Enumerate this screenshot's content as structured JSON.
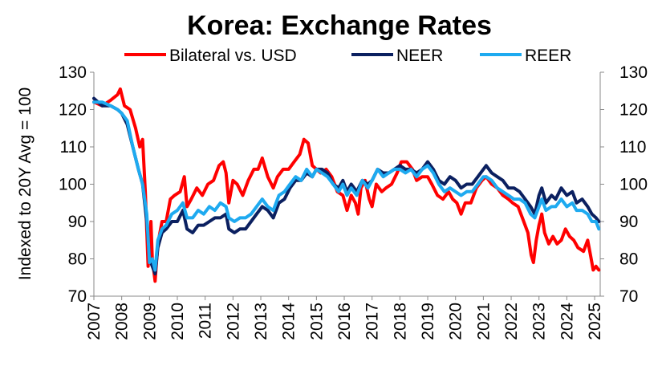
{
  "chart_data": {
    "type": "line",
    "title": "Korea: Exchange Rates",
    "ylabel": "Indexed to 20Y Avg = 100",
    "xlabel": "",
    "ylim": [
      70,
      130
    ],
    "y_ticks": [
      70,
      80,
      90,
      100,
      110,
      120,
      130
    ],
    "xlim": [
      2007,
      2025.2
    ],
    "x_ticks": [
      2007,
      2008,
      2009,
      2010,
      2011,
      2012,
      2013,
      2014,
      2015,
      2016,
      2017,
      2018,
      2019,
      2020,
      2021,
      2022,
      2023,
      2024,
      2025
    ],
    "grid": false,
    "secondary_y_axis": true,
    "legend_position": "top",
    "series": [
      {
        "name": "Bilateral vs. USD",
        "color": "#ff0000",
        "points": [
          [
            2007.0,
            122
          ],
          [
            2007.3,
            121
          ],
          [
            2007.6,
            122.5
          ],
          [
            2007.85,
            124
          ],
          [
            2007.95,
            125.5
          ],
          [
            2008.1,
            121
          ],
          [
            2008.3,
            120
          ],
          [
            2008.5,
            115
          ],
          [
            2008.65,
            110
          ],
          [
            2008.75,
            112
          ],
          [
            2008.85,
            98
          ],
          [
            2008.95,
            78
          ],
          [
            2009.05,
            90
          ],
          [
            2009.1,
            80
          ],
          [
            2009.2,
            74
          ],
          [
            2009.3,
            84
          ],
          [
            2009.45,
            90
          ],
          [
            2009.6,
            90
          ],
          [
            2009.75,
            96
          ],
          [
            2009.9,
            97
          ],
          [
            2010.1,
            98
          ],
          [
            2010.25,
            102
          ],
          [
            2010.35,
            94
          ],
          [
            2010.5,
            96
          ],
          [
            2010.7,
            99
          ],
          [
            2010.9,
            97
          ],
          [
            2011.1,
            100
          ],
          [
            2011.3,
            101
          ],
          [
            2011.5,
            105
          ],
          [
            2011.65,
            106
          ],
          [
            2011.75,
            103
          ],
          [
            2011.85,
            95
          ],
          [
            2012.0,
            101
          ],
          [
            2012.15,
            100
          ],
          [
            2012.35,
            97
          ],
          [
            2012.55,
            101
          ],
          [
            2012.75,
            104
          ],
          [
            2012.9,
            104
          ],
          [
            2013.05,
            107
          ],
          [
            2013.25,
            102
          ],
          [
            2013.45,
            99
          ],
          [
            2013.6,
            102
          ],
          [
            2013.8,
            104
          ],
          [
            2014.0,
            104
          ],
          [
            2014.2,
            106
          ],
          [
            2014.4,
            108
          ],
          [
            2014.55,
            112
          ],
          [
            2014.7,
            111
          ],
          [
            2014.85,
            105
          ],
          [
            2015.0,
            104
          ],
          [
            2015.15,
            103
          ],
          [
            2015.35,
            104
          ],
          [
            2015.55,
            102
          ],
          [
            2015.75,
            98
          ],
          [
            2015.95,
            97
          ],
          [
            2016.1,
            93
          ],
          [
            2016.25,
            97
          ],
          [
            2016.4,
            95
          ],
          [
            2016.5,
            92
          ],
          [
            2016.6,
            99
          ],
          [
            2016.75,
            101
          ],
          [
            2016.9,
            96
          ],
          [
            2017.0,
            94
          ],
          [
            2017.15,
            100
          ],
          [
            2017.35,
            98
          ],
          [
            2017.5,
            99
          ],
          [
            2017.7,
            100
          ],
          [
            2017.9,
            103
          ],
          [
            2018.05,
            106
          ],
          [
            2018.25,
            106
          ],
          [
            2018.45,
            104
          ],
          [
            2018.6,
            101
          ],
          [
            2018.8,
            102
          ],
          [
            2019.0,
            102
          ],
          [
            2019.15,
            100
          ],
          [
            2019.35,
            97
          ],
          [
            2019.55,
            96
          ],
          [
            2019.75,
            98
          ],
          [
            2019.9,
            96
          ],
          [
            2020.05,
            95
          ],
          [
            2020.2,
            92
          ],
          [
            2020.35,
            95
          ],
          [
            2020.55,
            95
          ],
          [
            2020.75,
            99
          ],
          [
            2020.95,
            101
          ],
          [
            2021.1,
            102
          ],
          [
            2021.3,
            100
          ],
          [
            2021.5,
            99
          ],
          [
            2021.7,
            97
          ],
          [
            2021.9,
            96
          ],
          [
            2022.05,
            95
          ],
          [
            2022.25,
            94
          ],
          [
            2022.45,
            90
          ],
          [
            2022.6,
            87
          ],
          [
            2022.72,
            81
          ],
          [
            2022.8,
            79
          ],
          [
            2022.9,
            85
          ],
          [
            2023.0,
            89
          ],
          [
            2023.1,
            92
          ],
          [
            2023.2,
            87
          ],
          [
            2023.35,
            84
          ],
          [
            2023.5,
            86
          ],
          [
            2023.65,
            84
          ],
          [
            2023.8,
            85
          ],
          [
            2023.95,
            88
          ],
          [
            2024.1,
            86
          ],
          [
            2024.25,
            85
          ],
          [
            2024.4,
            83
          ],
          [
            2024.6,
            82
          ],
          [
            2024.75,
            85
          ],
          [
            2024.85,
            81
          ],
          [
            2024.95,
            77
          ],
          [
            2025.05,
            78
          ],
          [
            2025.15,
            77
          ]
        ]
      },
      {
        "name": "NEER",
        "color": "#0b2060",
        "points": [
          [
            2007.0,
            123
          ],
          [
            2007.3,
            121
          ],
          [
            2007.6,
            121
          ],
          [
            2007.85,
            120
          ],
          [
            2008.0,
            119
          ],
          [
            2008.2,
            116
          ],
          [
            2008.4,
            110
          ],
          [
            2008.6,
            104
          ],
          [
            2008.75,
            100
          ],
          [
            2008.9,
            90
          ],
          [
            2009.0,
            80
          ],
          [
            2009.1,
            78
          ],
          [
            2009.2,
            76
          ],
          [
            2009.3,
            83
          ],
          [
            2009.45,
            87
          ],
          [
            2009.6,
            88
          ],
          [
            2009.8,
            90
          ],
          [
            2010.0,
            90
          ],
          [
            2010.2,
            93
          ],
          [
            2010.35,
            88
          ],
          [
            2010.55,
            87
          ],
          [
            2010.75,
            89
          ],
          [
            2010.95,
            89
          ],
          [
            2011.15,
            90
          ],
          [
            2011.35,
            91
          ],
          [
            2011.55,
            91
          ],
          [
            2011.75,
            92
          ],
          [
            2011.85,
            88
          ],
          [
            2012.05,
            87
          ],
          [
            2012.25,
            88
          ],
          [
            2012.45,
            88
          ],
          [
            2012.65,
            90
          ],
          [
            2012.85,
            92
          ],
          [
            2013.05,
            94
          ],
          [
            2013.25,
            93
          ],
          [
            2013.45,
            91
          ],
          [
            2013.65,
            95
          ],
          [
            2013.85,
            96
          ],
          [
            2014.05,
            99
          ],
          [
            2014.25,
            101
          ],
          [
            2014.45,
            101
          ],
          [
            2014.65,
            103
          ],
          [
            2014.85,
            102
          ],
          [
            2015.0,
            104
          ],
          [
            2015.2,
            104
          ],
          [
            2015.4,
            103
          ],
          [
            2015.6,
            100
          ],
          [
            2015.8,
            99
          ],
          [
            2015.95,
            101
          ],
          [
            2016.1,
            98
          ],
          [
            2016.25,
            100
          ],
          [
            2016.45,
            98
          ],
          [
            2016.65,
            101
          ],
          [
            2016.85,
            100
          ],
          [
            2017.0,
            101
          ],
          [
            2017.2,
            104
          ],
          [
            2017.4,
            103
          ],
          [
            2017.6,
            103
          ],
          [
            2017.8,
            104
          ],
          [
            2018.0,
            105
          ],
          [
            2018.2,
            104
          ],
          [
            2018.4,
            104
          ],
          [
            2018.6,
            103
          ],
          [
            2018.8,
            104
          ],
          [
            2019.0,
            106
          ],
          [
            2019.2,
            104
          ],
          [
            2019.4,
            101
          ],
          [
            2019.6,
            100
          ],
          [
            2019.8,
            102
          ],
          [
            2020.0,
            101
          ],
          [
            2020.2,
            99
          ],
          [
            2020.4,
            100
          ],
          [
            2020.6,
            100
          ],
          [
            2020.8,
            102
          ],
          [
            2021.0,
            104
          ],
          [
            2021.1,
            105
          ],
          [
            2021.3,
            103
          ],
          [
            2021.5,
            102
          ],
          [
            2021.7,
            101
          ],
          [
            2021.9,
            99
          ],
          [
            2022.1,
            99
          ],
          [
            2022.3,
            98
          ],
          [
            2022.5,
            96
          ],
          [
            2022.7,
            94
          ],
          [
            2022.85,
            92
          ],
          [
            2023.0,
            97
          ],
          [
            2023.1,
            99
          ],
          [
            2023.25,
            95
          ],
          [
            2023.45,
            97
          ],
          [
            2023.6,
            96
          ],
          [
            2023.8,
            99
          ],
          [
            2024.0,
            97
          ],
          [
            2024.2,
            98
          ],
          [
            2024.35,
            95
          ],
          [
            2024.55,
            96
          ],
          [
            2024.75,
            94
          ],
          [
            2024.9,
            92
          ],
          [
            2025.05,
            91
          ],
          [
            2025.15,
            90
          ]
        ]
      },
      {
        "name": "REER",
        "color": "#1eaaf0",
        "points": [
          [
            2007.0,
            122
          ],
          [
            2007.3,
            122
          ],
          [
            2007.6,
            121
          ],
          [
            2007.85,
            120
          ],
          [
            2008.0,
            119
          ],
          [
            2008.2,
            117
          ],
          [
            2008.4,
            110
          ],
          [
            2008.6,
            104
          ],
          [
            2008.75,
            100
          ],
          [
            2008.9,
            92
          ],
          [
            2009.0,
            79
          ],
          [
            2009.1,
            80
          ],
          [
            2009.2,
            77
          ],
          [
            2009.3,
            85
          ],
          [
            2009.45,
            88
          ],
          [
            2009.6,
            89
          ],
          [
            2009.8,
            92
          ],
          [
            2010.0,
            93
          ],
          [
            2010.2,
            95
          ],
          [
            2010.35,
            91
          ],
          [
            2010.55,
            91
          ],
          [
            2010.75,
            93
          ],
          [
            2010.95,
            92
          ],
          [
            2011.15,
            94
          ],
          [
            2011.35,
            93
          ],
          [
            2011.55,
            95
          ],
          [
            2011.75,
            94
          ],
          [
            2011.85,
            91
          ],
          [
            2012.05,
            90
          ],
          [
            2012.25,
            91
          ],
          [
            2012.45,
            91
          ],
          [
            2012.65,
            92
          ],
          [
            2012.85,
            94
          ],
          [
            2013.05,
            96
          ],
          [
            2013.25,
            94
          ],
          [
            2013.45,
            93
          ],
          [
            2013.65,
            97
          ],
          [
            2013.85,
            98
          ],
          [
            2014.05,
            100
          ],
          [
            2014.25,
            102
          ],
          [
            2014.45,
            101
          ],
          [
            2014.65,
            104
          ],
          [
            2014.85,
            102
          ],
          [
            2015.0,
            104
          ],
          [
            2015.2,
            103
          ],
          [
            2015.4,
            102
          ],
          [
            2015.6,
            100
          ],
          [
            2015.8,
            98
          ],
          [
            2015.95,
            100
          ],
          [
            2016.1,
            97
          ],
          [
            2016.25,
            99
          ],
          [
            2016.45,
            97
          ],
          [
            2016.65,
            101
          ],
          [
            2016.85,
            99
          ],
          [
            2017.0,
            101
          ],
          [
            2017.2,
            104
          ],
          [
            2017.4,
            102
          ],
          [
            2017.6,
            103
          ],
          [
            2017.8,
            104
          ],
          [
            2018.0,
            104
          ],
          [
            2018.2,
            103
          ],
          [
            2018.4,
            104
          ],
          [
            2018.6,
            102
          ],
          [
            2018.8,
            104
          ],
          [
            2019.0,
            105
          ],
          [
            2019.2,
            103
          ],
          [
            2019.4,
            100
          ],
          [
            2019.6,
            98
          ],
          [
            2019.8,
            99
          ],
          [
            2020.0,
            98
          ],
          [
            2020.2,
            97
          ],
          [
            2020.4,
            98
          ],
          [
            2020.6,
            98
          ],
          [
            2020.8,
            100
          ],
          [
            2021.0,
            102
          ],
          [
            2021.1,
            102
          ],
          [
            2021.3,
            101
          ],
          [
            2021.5,
            99
          ],
          [
            2021.7,
            98
          ],
          [
            2021.9,
            97
          ],
          [
            2022.1,
            96
          ],
          [
            2022.3,
            96
          ],
          [
            2022.5,
            95
          ],
          [
            2022.7,
            92
          ],
          [
            2022.85,
            91
          ],
          [
            2023.0,
            94
          ],
          [
            2023.1,
            96
          ],
          [
            2023.25,
            93
          ],
          [
            2023.45,
            94
          ],
          [
            2023.6,
            94
          ],
          [
            2023.8,
            96
          ],
          [
            2024.0,
            94
          ],
          [
            2024.2,
            95
          ],
          [
            2024.35,
            93
          ],
          [
            2024.55,
            93
          ],
          [
            2024.75,
            92
          ],
          [
            2024.9,
            90
          ],
          [
            2025.05,
            90
          ],
          [
            2025.15,
            88
          ]
        ]
      }
    ]
  }
}
